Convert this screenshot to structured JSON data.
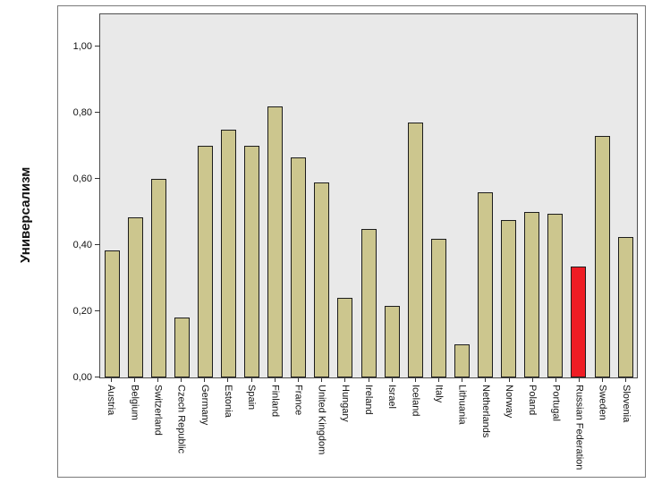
{
  "chart_data": {
    "type": "bar",
    "title": "",
    "xlabel": "",
    "ylabel": "Универсализм",
    "ylim": [
      0,
      1.0
    ],
    "grid": false,
    "legend": false,
    "yticks": [
      "0,00",
      "0,20",
      "0,40",
      "0,60",
      "0,80",
      "1,00"
    ],
    "categories": [
      "Austria",
      "Belgium",
      "Switzerland",
      "Czech Republic",
      "Germany",
      "Estonia",
      "Spain",
      "Finland",
      "France",
      "United Kingdom",
      "Hungary",
      "Ireland",
      "Israel",
      "Iceland",
      "Italy",
      "Lithuania",
      "Netherlands",
      "Norway",
      "Poland",
      "Portugal",
      "Russian Federation",
      "Sweden",
      "Slovenia"
    ],
    "values": [
      0.385,
      0.485,
      0.6,
      0.18,
      0.7,
      0.75,
      0.7,
      0.82,
      0.665,
      0.59,
      0.24,
      0.45,
      0.215,
      0.77,
      0.42,
      0.1,
      0.56,
      0.475,
      0.5,
      0.495,
      0.335,
      0.73,
      0.425
    ],
    "highlight_index": 20,
    "colors": {
      "bar_fill": "#ccc68e",
      "highlight_fill": "#ee1c24",
      "bar_border": "#1c1c1c",
      "plot_background": "#e9e9e9",
      "frame_border": "#7a7a7a"
    }
  }
}
